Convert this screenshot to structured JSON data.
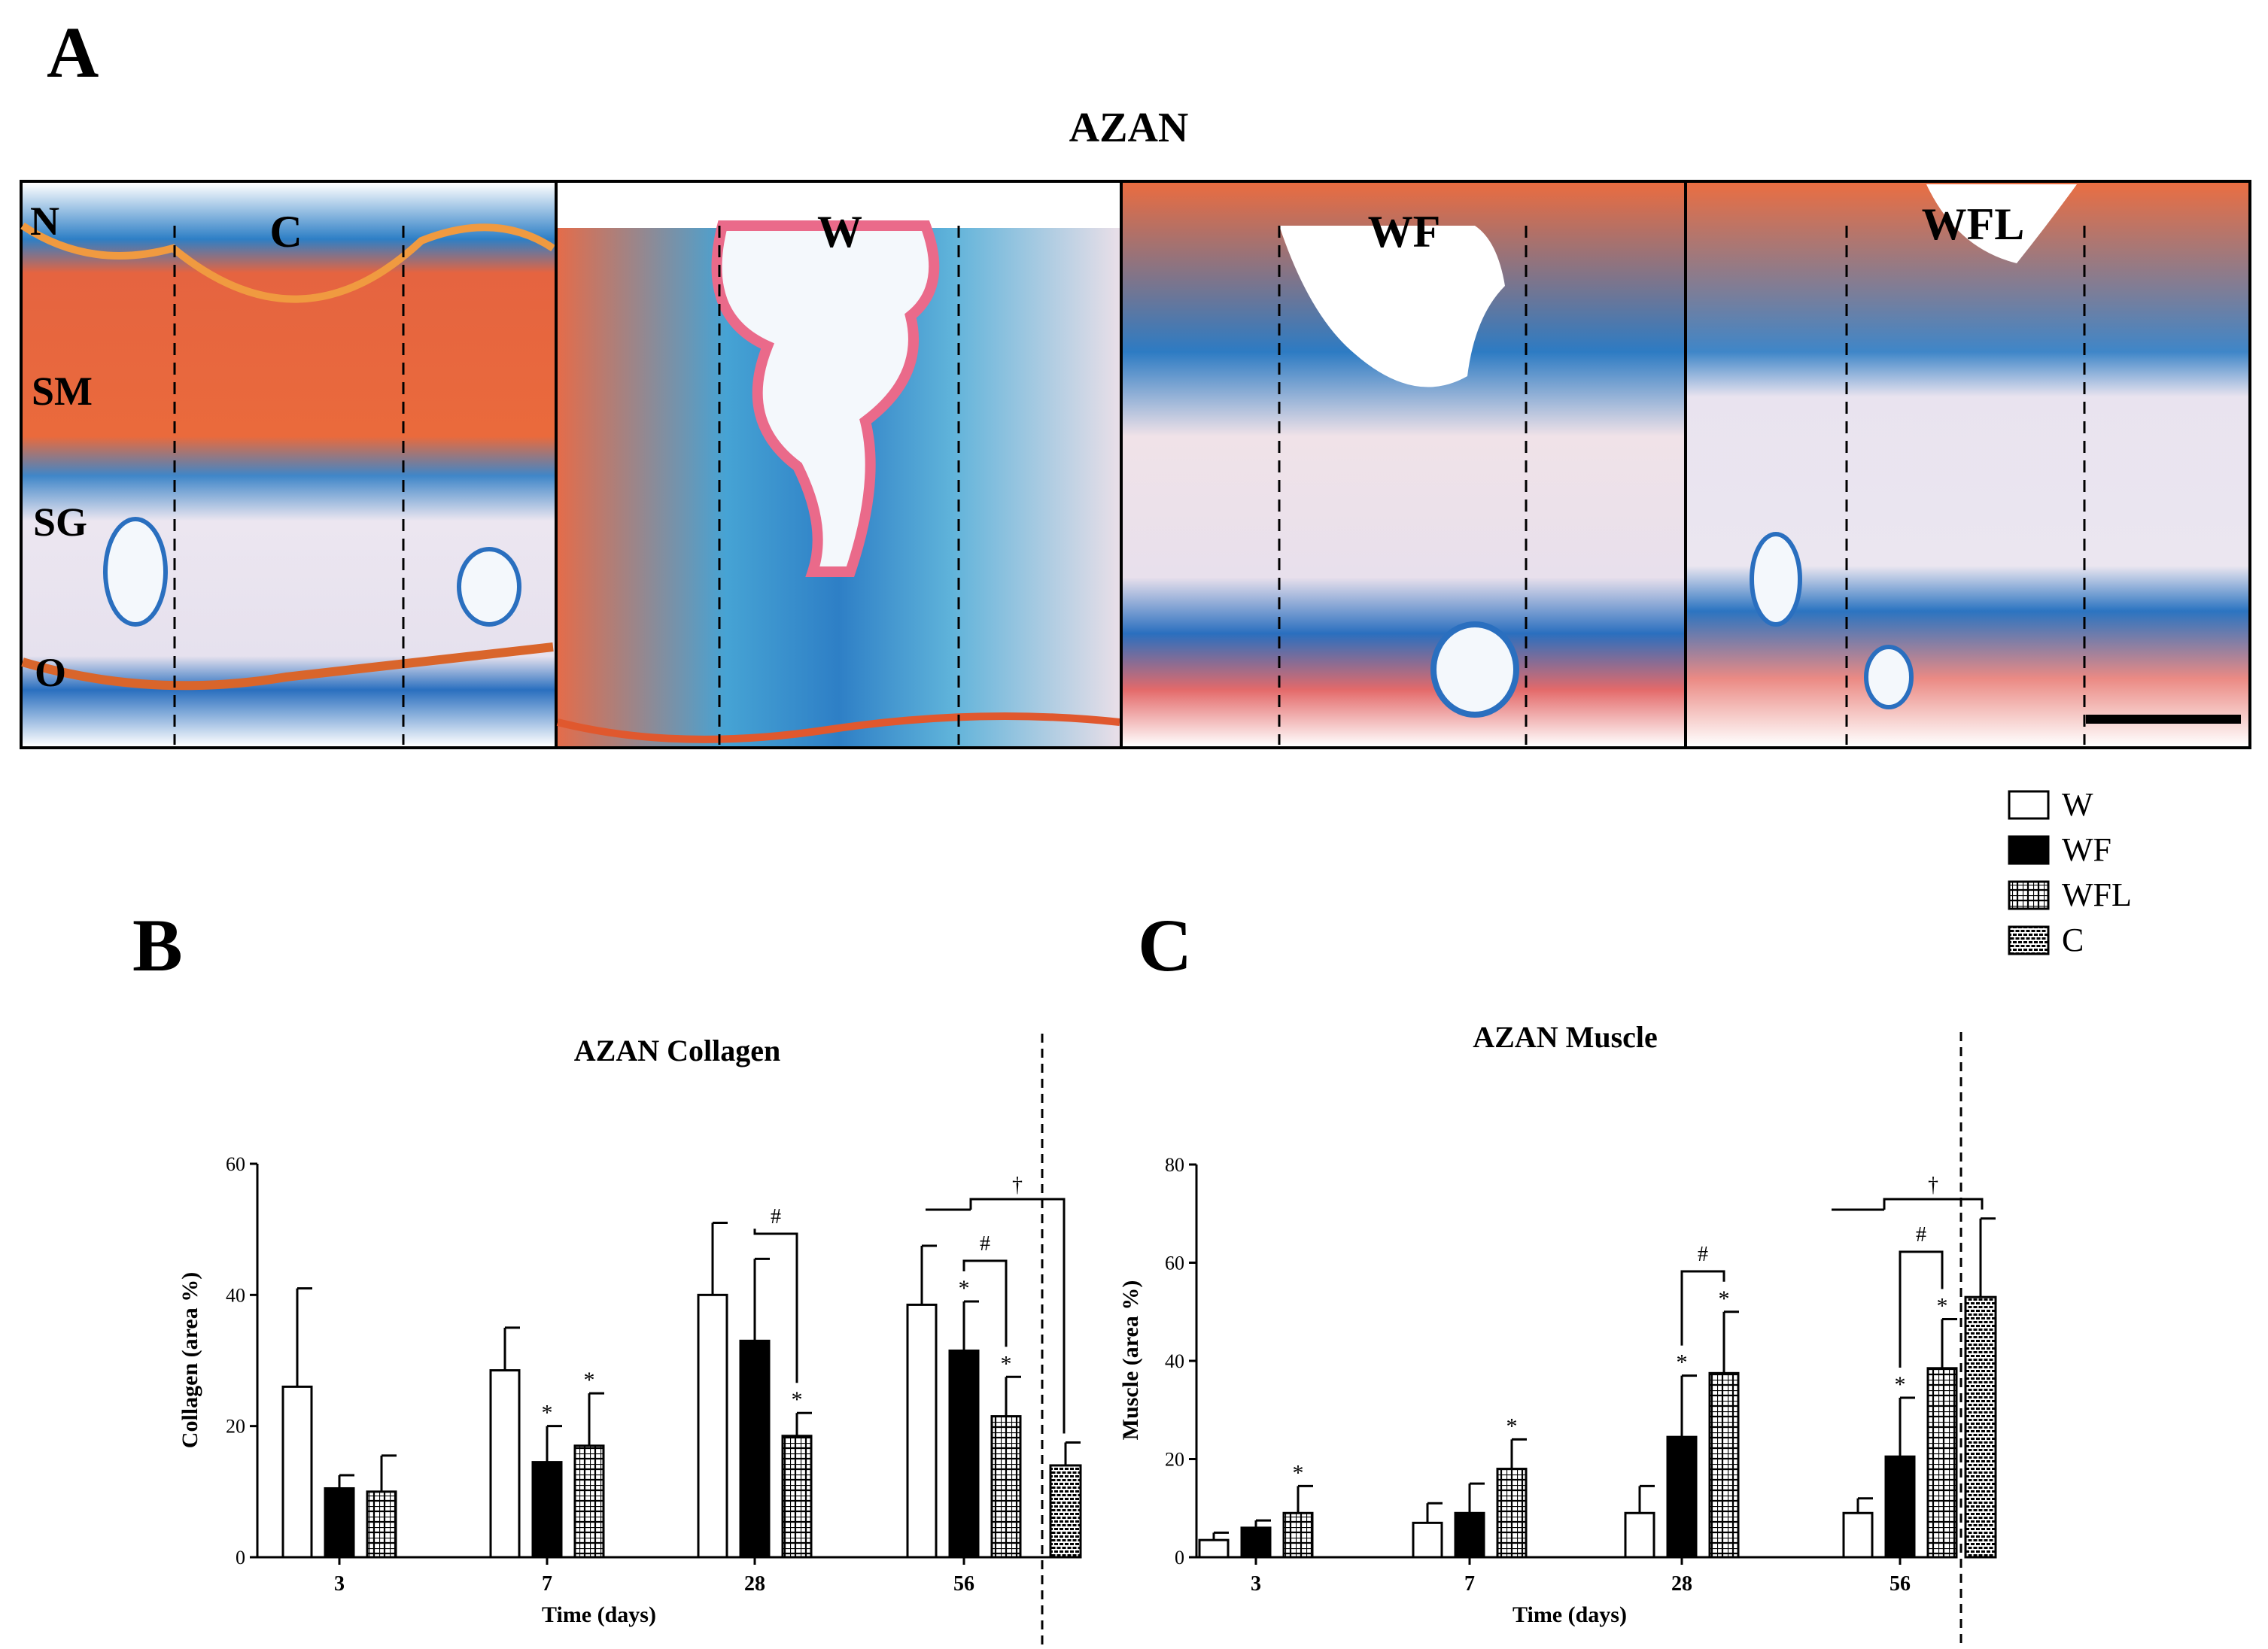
{
  "panel_a": {
    "letter": "A",
    "title": "AZAN",
    "layer_labels": [
      "N",
      "SM",
      "SG",
      "O"
    ],
    "panels": [
      {
        "label": "C"
      },
      {
        "label": "W"
      },
      {
        "label": "WF"
      },
      {
        "label": "WFL"
      }
    ]
  },
  "panel_b": {
    "letter": "B"
  },
  "panel_c": {
    "letter": "C"
  },
  "legend": {
    "items": [
      {
        "label": "W",
        "pattern": "white"
      },
      {
        "label": "WF",
        "pattern": "black"
      },
      {
        "label": "WFL",
        "pattern": "grid"
      },
      {
        "label": "C",
        "pattern": "brick"
      }
    ]
  },
  "chart_data": [
    {
      "type": "bar",
      "title": "AZAN Collagen",
      "xlabel": "Time (days)",
      "ylabel": "Collagen (area %)",
      "ylim": [
        0,
        60
      ],
      "yticks": [
        "0",
        "20",
        "40",
        "60"
      ],
      "categories": [
        "3",
        "7",
        "28",
        "56"
      ],
      "series": [
        {
          "name": "W",
          "values": [
            26,
            28.5,
            40,
            38.5
          ],
          "errors": [
            15,
            6.5,
            11,
            9
          ]
        },
        {
          "name": "WF",
          "values": [
            10.5,
            14.5,
            33,
            31.5
          ],
          "errors": [
            2,
            5.5,
            12.5,
            7.5
          ]
        },
        {
          "name": "WFL",
          "values": [
            10,
            17,
            18.5,
            21.5
          ],
          "errors": [
            5.5,
            8,
            3.5,
            6
          ]
        }
      ],
      "control": {
        "name": "C",
        "value": 14,
        "error": 3.5
      },
      "stars": [
        [
          "",
          "",
          ""
        ],
        [
          "",
          "*",
          "*"
        ],
        [
          "",
          "",
          "*"
        ],
        [
          "",
          "*",
          "*"
        ]
      ],
      "star_symbol": "*",
      "hash_symbol": "#",
      "dagger_symbol": "†"
    },
    {
      "type": "bar",
      "title": "AZAN Muscle",
      "xlabel": "Time (days)",
      "ylabel": "Muscle (area %)",
      "ylim": [
        0,
        80
      ],
      "yticks": [
        "0",
        "20",
        "40",
        "60",
        "80"
      ],
      "categories": [
        "3",
        "7",
        "28",
        "56"
      ],
      "series": [
        {
          "name": "W",
          "values": [
            3.5,
            7,
            9,
            9
          ],
          "errors": [
            1.5,
            4,
            5.5,
            3
          ]
        },
        {
          "name": "WF",
          "values": [
            6,
            9,
            24.5,
            20.5
          ],
          "errors": [
            1.5,
            6,
            12.5,
            12
          ]
        },
        {
          "name": "WFL",
          "values": [
            9,
            18,
            37.5,
            38.5
          ],
          "errors": [
            5.5,
            6,
            12.5,
            10
          ]
        }
      ],
      "control": {
        "name": "C",
        "value": 53,
        "error": 16
      },
      "stars": [
        [
          "",
          "",
          "*"
        ],
        [
          "",
          "",
          "*"
        ],
        [
          "",
          "*",
          "*"
        ],
        [
          "",
          "*",
          "*"
        ]
      ],
      "star_symbol": "*",
      "hash_symbol": "#",
      "dagger_symbol": "†"
    }
  ]
}
